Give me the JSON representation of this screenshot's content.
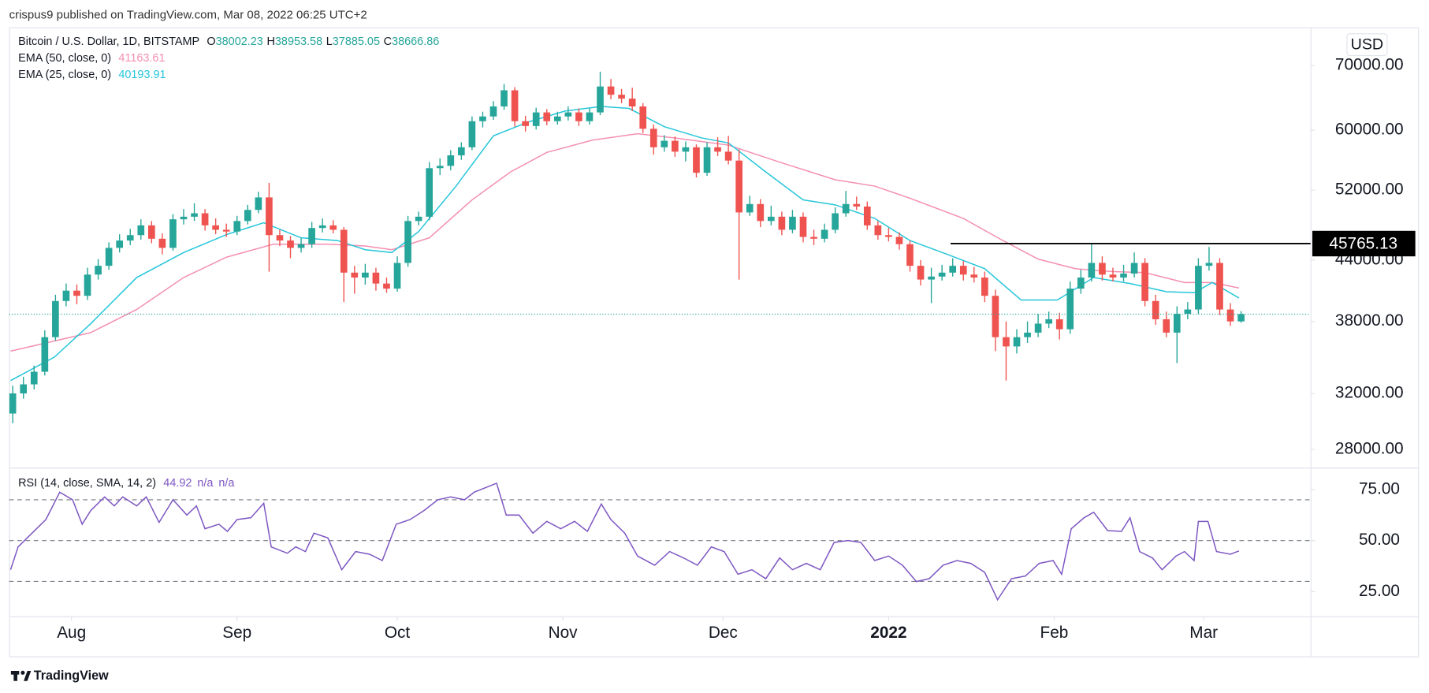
{
  "header": {
    "published": "crispus9 published on TradingView.com, Mar 08, 2022 06:25 UTC+2",
    "footer": "TradingView"
  },
  "chart_data": [
    {
      "type": "candlestick",
      "title": "Bitcoin / U.S. Dollar, 1D, BITSTAMP",
      "currency": "USD",
      "ohlc_labels": [
        "O",
        "H",
        "L",
        "C"
      ],
      "up_color": "#26a69a",
      "down_color": "#ef5350",
      "log_scale": true,
      "grid": false,
      "ylim": [
        26860,
        76700
      ],
      "yticks": [
        {
          "value": 28000,
          "label": "28000.00"
        },
        {
          "value": 32000,
          "label": "32000.00"
        },
        {
          "value": 38000,
          "label": "38000.00"
        },
        {
          "value": 44000,
          "label": "44000.00"
        },
        {
          "value": 52000,
          "label": "52000.00"
        },
        {
          "value": 60000,
          "label": "60000.00"
        },
        {
          "value": 70000,
          "label": "70000.00"
        }
      ],
      "xlim": [
        -0.34,
        121.5
      ],
      "xticks": [
        {
          "value": 5.5,
          "label": "Aug"
        },
        {
          "value": 21,
          "label": "Sep"
        },
        {
          "value": 36,
          "label": "Oct"
        },
        {
          "value": 51.5,
          "label": "Nov"
        },
        {
          "value": 66.5,
          "label": "Dec"
        },
        {
          "value": 82,
          "label": "2022"
        },
        {
          "value": 97.5,
          "label": "Feb"
        },
        {
          "value": 111.5,
          "label": "Mar"
        }
      ],
      "candles": [
        [
          30500,
          32600,
          29800,
          32000
        ],
        [
          32000,
          33300,
          31600,
          32700
        ],
        [
          32700,
          34200,
          32300,
          33700
        ],
        [
          33700,
          37200,
          33400,
          36600
        ],
        [
          36600,
          40500,
          36300,
          39900
        ],
        [
          39900,
          41600,
          39400,
          40900
        ],
        [
          40900,
          41500,
          39600,
          40400
        ],
        [
          40400,
          43200,
          40000,
          42500
        ],
        [
          42500,
          44100,
          42000,
          43400
        ],
        [
          43400,
          45900,
          43000,
          45300
        ],
        [
          45300,
          46800,
          44800,
          46100
        ],
        [
          46100,
          47400,
          45600,
          46700
        ],
        [
          46700,
          48500,
          46200,
          47800
        ],
        [
          47800,
          48300,
          45800,
          46300
        ],
        [
          46300,
          46900,
          44600,
          45300
        ],
        [
          45300,
          49100,
          45000,
          48500
        ],
        [
          48500,
          49700,
          47900,
          48800
        ],
        [
          48800,
          50400,
          48300,
          49200
        ],
        [
          49200,
          49700,
          47200,
          47800
        ],
        [
          47800,
          48600,
          46800,
          47300
        ],
        [
          47300,
          48000,
          46500,
          47100
        ],
        [
          47100,
          48900,
          46700,
          48300
        ],
        [
          48300,
          50200,
          47900,
          49600
        ],
        [
          49600,
          51800,
          49200,
          51100
        ],
        [
          51100,
          52900,
          42800,
          46700
        ],
        [
          46700,
          47300,
          45500,
          46100
        ],
        [
          46100,
          46600,
          44200,
          45300
        ],
        [
          45300,
          46400,
          44800,
          45700
        ],
        [
          45700,
          48200,
          45300,
          47500
        ],
        [
          47500,
          48600,
          47000,
          47800
        ],
        [
          47800,
          48400,
          46900,
          47300
        ],
        [
          47300,
          47600,
          39800,
          42700
        ],
        [
          42700,
          43400,
          40600,
          42200
        ],
        [
          42200,
          43600,
          41500,
          42700
        ],
        [
          42700,
          43200,
          40900,
          41600
        ],
        [
          41600,
          42200,
          40700,
          41100
        ],
        [
          41100,
          44400,
          40800,
          43700
        ],
        [
          43700,
          48900,
          43300,
          48300
        ],
        [
          48300,
          49400,
          47800,
          48800
        ],
        [
          48800,
          55600,
          48400,
          54800
        ],
        [
          54800,
          56100,
          53900,
          55100
        ],
        [
          55100,
          57200,
          54500,
          56500
        ],
        [
          56500,
          58300,
          55900,
          57600
        ],
        [
          57600,
          62000,
          57200,
          61300
        ],
        [
          61300,
          62700,
          60400,
          62000
        ],
        [
          62000,
          64300,
          61500,
          63500
        ],
        [
          63500,
          67000,
          63000,
          66000
        ],
        [
          66000,
          66500,
          60500,
          61300
        ],
        [
          61300,
          62100,
          59800,
          60600
        ],
        [
          60600,
          63300,
          60100,
          62600
        ],
        [
          62600,
          63100,
          60700,
          61300
        ],
        [
          61300,
          62700,
          60800,
          62000
        ],
        [
          62000,
          63500,
          61400,
          62600
        ],
        [
          62600,
          63200,
          60600,
          61300
        ],
        [
          61300,
          63200,
          60800,
          62600
        ],
        [
          62600,
          69000,
          62200,
          66600
        ],
        [
          66600,
          67800,
          64600,
          65300
        ],
        [
          65300,
          66200,
          64000,
          64700
        ],
        [
          64700,
          66400,
          62800,
          63500
        ],
        [
          63500,
          64000,
          59600,
          60200
        ],
        [
          60200,
          60800,
          56600,
          57600
        ],
        [
          57600,
          59300,
          57000,
          58500
        ],
        [
          58500,
          59100,
          56300,
          57000
        ],
        [
          57000,
          58400,
          55700,
          57600
        ],
        [
          57600,
          58000,
          53600,
          54200
        ],
        [
          54200,
          58300,
          53800,
          57600
        ],
        [
          57600,
          59000,
          56400,
          57000
        ],
        [
          57000,
          59200,
          55300,
          55800
        ],
        [
          55800,
          57300,
          42000,
          49300
        ],
        [
          49300,
          51300,
          48900,
          50300
        ],
        [
          50300,
          50900,
          47600,
          48300
        ],
        [
          48300,
          50100,
          47800,
          48800
        ],
        [
          48800,
          49400,
          46700,
          47300
        ],
        [
          47300,
          49600,
          46900,
          48800
        ],
        [
          48800,
          49300,
          45900,
          46500
        ],
        [
          46500,
          47300,
          45600,
          46300
        ],
        [
          46300,
          48000,
          45900,
          47300
        ],
        [
          47300,
          49900,
          46900,
          49200
        ],
        [
          49200,
          51900,
          48800,
          50300
        ],
        [
          50300,
          51200,
          49600,
          50000
        ],
        [
          50000,
          50600,
          47300,
          47800
        ],
        [
          47800,
          48300,
          46200,
          46700
        ],
        [
          46700,
          47500,
          46000,
          46500
        ],
        [
          46500,
          47000,
          45100,
          45700
        ],
        [
          45700,
          46100,
          42800,
          43400
        ],
        [
          43400,
          44000,
          41400,
          42000
        ],
        [
          42000,
          43200,
          39700,
          42300
        ],
        [
          42300,
          43500,
          41900,
          42700
        ],
        [
          42700,
          44200,
          42300,
          43400
        ],
        [
          43400,
          43900,
          41900,
          42500
        ],
        [
          42500,
          43300,
          41700,
          42200
        ],
        [
          42200,
          42800,
          39800,
          40400
        ],
        [
          40400,
          41000,
          35400,
          36600
        ],
        [
          36600,
          38000,
          33000,
          35800
        ],
        [
          35800,
          37300,
          35200,
          36600
        ],
        [
          36600,
          38000,
          36100,
          37000
        ],
        [
          37000,
          38700,
          36600,
          37800
        ],
        [
          37800,
          38900,
          37400,
          38200
        ],
        [
          38200,
          38800,
          36400,
          37300
        ],
        [
          37300,
          41800,
          36900,
          41100
        ],
        [
          41100,
          43000,
          40600,
          42200
        ],
        [
          42200,
          45800,
          41800,
          43700
        ],
        [
          43700,
          44400,
          41900,
          42500
        ],
        [
          42500,
          43200,
          41800,
          42200
        ],
        [
          42200,
          43500,
          41800,
          42600
        ],
        [
          42600,
          44800,
          42200,
          43700
        ],
        [
          43700,
          44200,
          39400,
          39900
        ],
        [
          39900,
          40500,
          37700,
          38200
        ],
        [
          38200,
          38900,
          36600,
          37000
        ],
        [
          37000,
          39400,
          34400,
          38700
        ],
        [
          38700,
          39800,
          38200,
          39100
        ],
        [
          39100,
          44200,
          38700,
          43400
        ],
        [
          43400,
          45400,
          42900,
          43700
        ],
        [
          43700,
          44200,
          38600,
          39100
        ],
        [
          39100,
          39700,
          37600,
          38002.23
        ],
        [
          38002.23,
          38953.58,
          37885.05,
          38666.86
        ]
      ],
      "series": [
        {
          "name": "EMA (50, close, 0)",
          "color": "#f48fb1",
          "x": [
            -0.2,
            7.3,
            11.6,
            16,
            20,
            24.4,
            29.5,
            33,
            35.5,
            39,
            43,
            46.6,
            50,
            54.3,
            58.5,
            62,
            67,
            72,
            77,
            80.7,
            84,
            89,
            92.7,
            96,
            99.5,
            103,
            106,
            109.7,
            112.3,
            114.8
          ],
          "values": [
            35400,
            37000,
            39100,
            42200,
            44300,
            45700,
            45700,
            45500,
            45100,
            46400,
            50800,
            54300,
            56900,
            58600,
            59500,
            58900,
            57900,
            55500,
            53300,
            52500,
            51000,
            48600,
            46100,
            44100,
            43100,
            42800,
            42700,
            41700,
            41700,
            41163.61
          ]
        },
        {
          "name": "EMA (25, close, 0)",
          "color": "#26c6da",
          "x": [
            -0.2,
            3.9,
            7.3,
            11.6,
            16,
            20.1,
            23.5,
            27,
            30.4,
            33,
            35.5,
            38,
            41.5,
            45,
            48.3,
            51.7,
            55.1,
            57.7,
            61,
            64.5,
            67,
            70.5,
            74,
            77,
            80.7,
            84,
            87.5,
            91,
            94.4,
            97.8,
            101.2,
            104.6,
            108,
            110.6,
            112.3,
            114.8
          ],
          "values": [
            33000,
            34900,
            37800,
            42200,
            44800,
            46800,
            48100,
            46400,
            46100,
            45100,
            44800,
            47100,
            52500,
            59200,
            61200,
            62800,
            63500,
            63200,
            60500,
            58900,
            58200,
            54300,
            50800,
            50200,
            48600,
            46100,
            44600,
            43100,
            40000,
            40000,
            42200,
            41600,
            40800,
            40700,
            41700,
            40193.91
          ]
        }
      ],
      "horizontal_line": {
        "value": 45765.13,
        "x_start": 87.8,
        "color": "#000000"
      }
    },
    {
      "type": "line",
      "title": "RSI (14, close, SMA, 14, 2)",
      "extra_labels": [
        "n/a",
        "n/a"
      ],
      "ylim": [
        12.9,
        85.3
      ],
      "yticks": [
        {
          "value": 25,
          "label": "25.00"
        },
        {
          "value": 50,
          "label": "50.00"
        },
        {
          "value": 75,
          "label": "75.00"
        }
      ],
      "bands": [
        70,
        50,
        30
      ],
      "series": [
        {
          "name": "RSI",
          "color": "#7e57c2",
          "x": [
            -0.2,
            0.5,
            1.8,
            3.1,
            4.4,
            5.6,
            6.5,
            7.3,
            8.6,
            9.5,
            10.3,
            11.6,
            12.5,
            13.7,
            15,
            16.3,
            17.2,
            18,
            19.3,
            20.1,
            21,
            22.3,
            23.5,
            24.2,
            25.7,
            26.5,
            27.4,
            28.2,
            29.5,
            30.8,
            32.1,
            33.4,
            34.6,
            35.9,
            37.2,
            38.5,
            39.8,
            41,
            42.3,
            43.2,
            45.3,
            46.2,
            47.4,
            48.7,
            50,
            51.3,
            52.6,
            53.8,
            55.1,
            56,
            57.3,
            58.5,
            60.1,
            61.5,
            62.8,
            64.1,
            65.4,
            66.6,
            67.9,
            69.2,
            70.5,
            71.8,
            73,
            74.3,
            75.6,
            76.9,
            78.2,
            79.4,
            80.7,
            82,
            83.3,
            84.6,
            85.8,
            87.1,
            88.4,
            89.7,
            91,
            92.2,
            93.5,
            94.8,
            96.1,
            97.4,
            98.2,
            99.1,
            100.3,
            101.2,
            102.5,
            103.8,
            104.6,
            105.5,
            106.7,
            107.6,
            108.9,
            109.7,
            110.6,
            111,
            111.9,
            112.7,
            114,
            114.8
          ],
          "values": [
            35.7,
            46.9,
            53.6,
            60.3,
            73.7,
            70,
            58,
            64.7,
            71.4,
            67,
            71.4,
            67,
            71.4,
            58.9,
            70,
            62.5,
            67,
            55.8,
            58,
            54.5,
            60.3,
            61.2,
            68.3,
            46.9,
            43.8,
            46.9,
            44.6,
            53.6,
            51.3,
            35.7,
            44.6,
            43.3,
            40.2,
            58,
            60.3,
            64.7,
            70,
            71.4,
            70,
            73.7,
            78.1,
            62.5,
            62.5,
            53.6,
            59.4,
            55.8,
            59.4,
            54.5,
            67.9,
            60.3,
            53.6,
            42.4,
            37.9,
            44.6,
            41.5,
            37.9,
            46.9,
            44.6,
            33.5,
            35.7,
            31.3,
            41.5,
            35.7,
            38.8,
            35.7,
            49.1,
            50,
            49.1,
            40.2,
            42.4,
            37.9,
            29.9,
            31.3,
            37.9,
            40.2,
            38.8,
            34.4,
            21,
            31.3,
            32.6,
            38.8,
            40.2,
            33.5,
            55.8,
            61.2,
            63.9,
            54.9,
            54.5,
            61.2,
            44.6,
            41.5,
            35.7,
            42.4,
            44.6,
            40.2,
            59.4,
            59.4,
            44.6,
            43.3,
            44.92
          ]
        }
      ]
    }
  ]
}
